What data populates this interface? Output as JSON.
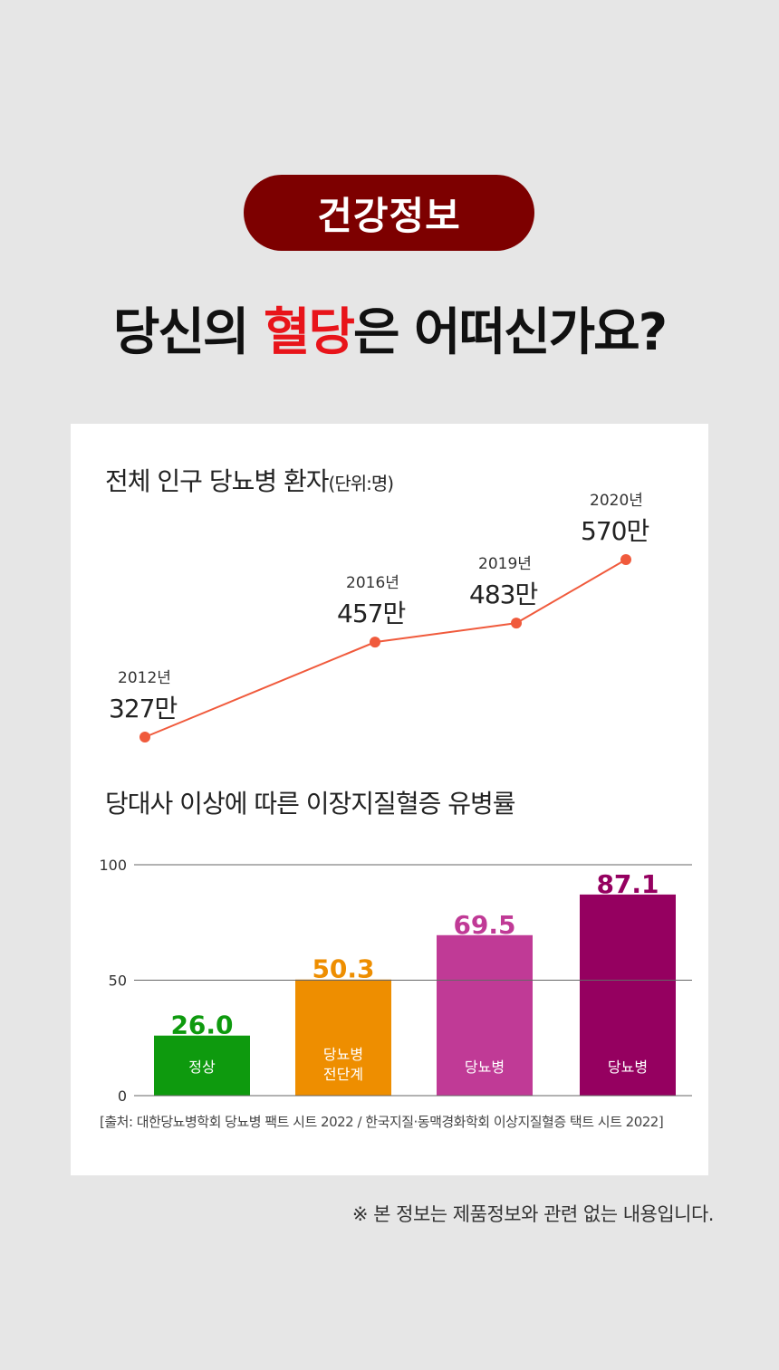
{
  "badge": "건강정보",
  "headline": {
    "before": "당신의 ",
    "highlight": "혈당",
    "after": "은 어떠신가요?"
  },
  "colors": {
    "badge": "#7d0000",
    "highlight": "#e8141a",
    "line": "#f05a3c"
  },
  "chart_data": [
    {
      "type": "line",
      "title": "전체 인구 당뇨병 환자",
      "unit": "(단위:명)",
      "points": [
        {
          "year": "2012년",
          "value": 327,
          "label": "327만"
        },
        {
          "year": "2016년",
          "value": 457,
          "label": "457만"
        },
        {
          "year": "2019년",
          "value": 483,
          "label": "483만"
        },
        {
          "year": "2020년",
          "value": 570,
          "label": "570만"
        }
      ]
    },
    {
      "type": "bar",
      "title": "당대사 이상에 따른 이장지질혈증 유병률",
      "ylim": [
        0,
        100
      ],
      "yticks": [
        0,
        50,
        100
      ],
      "bars": [
        {
          "category": [
            "정상"
          ],
          "value": 26.0,
          "label": "26.0",
          "color": "#0e9a0e"
        },
        {
          "category": [
            "당뇨병",
            "전단계"
          ],
          "value": 50.3,
          "label": "50.3",
          "color": "#ee8e00"
        },
        {
          "category": [
            "당뇨병"
          ],
          "value": 69.5,
          "label": "69.5",
          "color": "#c03a96"
        },
        {
          "category": [
            "당뇨병"
          ],
          "value": 87.1,
          "label": "87.1",
          "color": "#950060"
        }
      ]
    }
  ],
  "source": "[출처: 대한당뇨병학회 당뇨병 팩트 시트 2022 / 한국지질·동맥경화학회 이상지질혈증 택트 시트 2022]",
  "disclaimer": "※ 본 정보는 제품정보와 관련 없는 내용입니다."
}
